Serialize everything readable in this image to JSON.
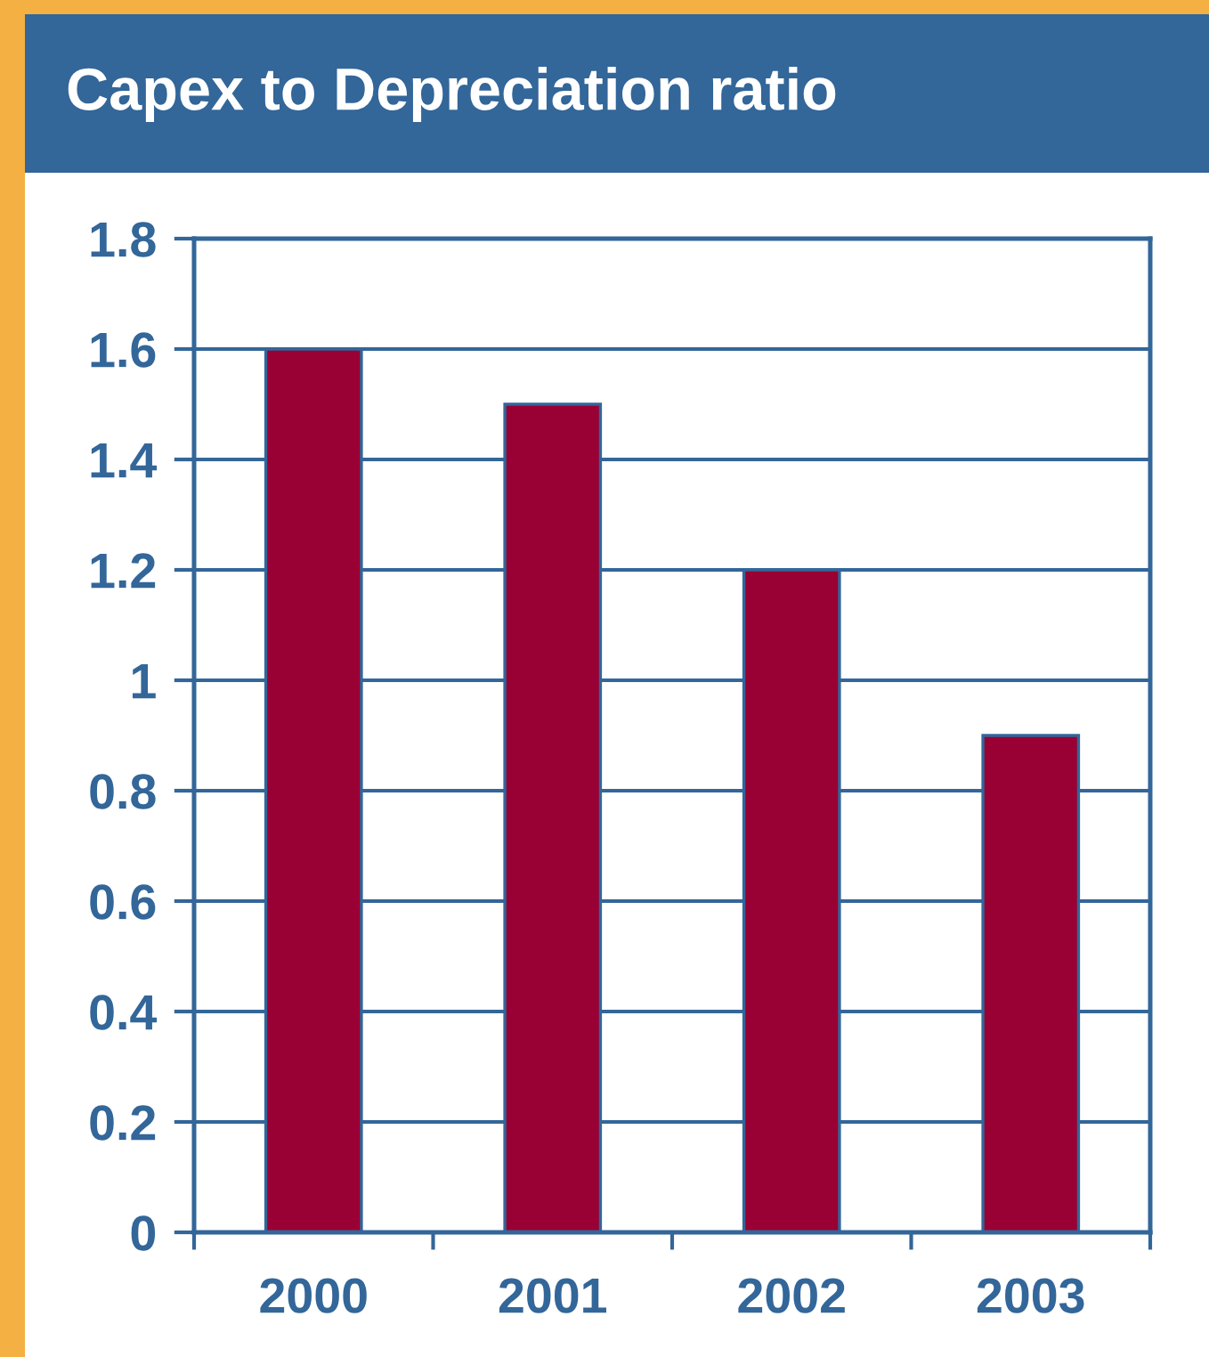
{
  "chart_data": {
    "type": "bar",
    "title": "Capex to Depreciation ratio",
    "categories": [
      "2000",
      "2001",
      "2002",
      "2003"
    ],
    "values": [
      1.6,
      1.5,
      1.2,
      0.9
    ],
    "color": "#990033",
    "ylim": [
      0,
      1.8
    ],
    "yticks": [
      0,
      0.2,
      0.4,
      0.6,
      0.8,
      1,
      1.2,
      1.4,
      1.6,
      1.8
    ],
    "grid": "y"
  }
}
